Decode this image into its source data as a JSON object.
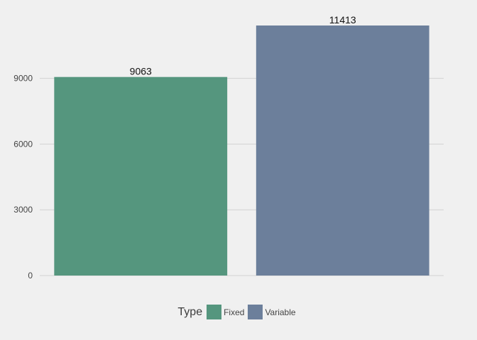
{
  "chart_data": {
    "type": "bar",
    "categories": [
      "Fixed",
      "Variable"
    ],
    "values": [
      9063,
      11413
    ],
    "title": "",
    "xlabel": "",
    "ylabel": "",
    "ylim": [
      0,
      11413
    ],
    "yticks": [
      0,
      3000,
      6000,
      9000
    ],
    "grid": "horizontal",
    "data_labels": [
      "9063",
      "11413"
    ],
    "legend": {
      "title": "Type",
      "position": "bottom",
      "items": [
        "Fixed",
        "Variable"
      ]
    },
    "colors": {
      "Fixed": "#55967e",
      "Variable": "#6c7f9b"
    }
  }
}
